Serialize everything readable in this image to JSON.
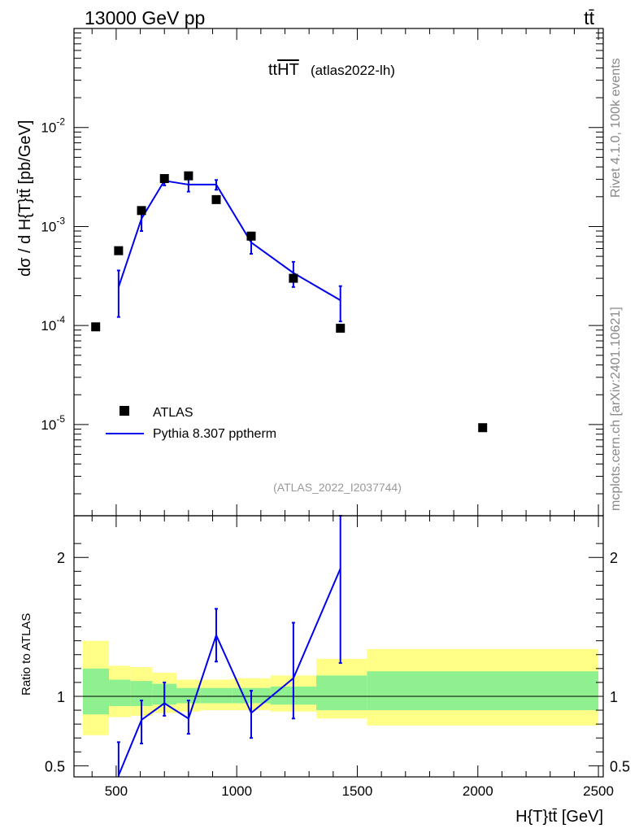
{
  "header": {
    "process_left": "13000 GeV pp",
    "process_right": "tt̄"
  },
  "side_labels": {
    "rivet": "Rivet 4.1.0,  100k events",
    "mcplots": "mcplots.cern.ch [arXiv:2401.10621]"
  },
  "chart_data": [
    {
      "type": "scatter",
      "panel": "main",
      "title_main": "tt",
      "title_overlined": "HT",
      "title_sub": "(atlas2022-lh)",
      "analysis_label": "(ATLAS_2022_I2037744)",
      "ylabel": "dσ / d H{T}tt̄ [pb/GeV]",
      "yscale": "log",
      "ylim": [
        1.2e-06,
        0.1
      ],
      "xlim": [
        325,
        2520
      ],
      "ytick_labels": [
        "10^-2",
        "10^-3",
        "10^-4",
        "10^-5"
      ],
      "legend": {
        "position": "bottom-left",
        "entries": [
          "ATLAS",
          "Pythia 8.307 pptherm"
        ]
      },
      "series": [
        {
          "name": "ATLAS",
          "style": "markers",
          "color": "#000000",
          "x": [
            415,
            510,
            605,
            700,
            800,
            915,
            1060,
            1235,
            1430,
            2020
          ],
          "y": [
            9.7e-05,
            0.00057,
            0.00145,
            0.00305,
            0.00325,
            0.00187,
            0.0008,
            0.0003,
            9.4e-05,
            9.3e-06
          ]
        },
        {
          "name": "Pythia 8.307 pptherm",
          "style": "line",
          "color": "#0000ee",
          "x": [
            510,
            605,
            700,
            800,
            915,
            1060,
            1235,
            1430
          ],
          "y": [
            0.000245,
            0.0012,
            0.0029,
            0.00265,
            0.00265,
            0.00069,
            0.00034,
            0.00018
          ],
          "err_lo": [
            0.000122,
            0.0009,
            0.0026,
            0.00225,
            0.00235,
            0.00053,
            0.000245,
            0.00011
          ],
          "err_hi": [
            0.00036,
            0.00135,
            0.00315,
            0.00305,
            0.00295,
            0.00087,
            0.00044,
            0.00025
          ]
        }
      ]
    },
    {
      "type": "line",
      "panel": "ratio",
      "ylabel": "Ratio to ATLAS",
      "xlabel": "H{T}tt̄ [GeV]",
      "ylim": [
        0.42,
        2.3
      ],
      "xlim": [
        325,
        2520
      ],
      "xticks": [
        500,
        1000,
        1500,
        2000,
        2500
      ],
      "xtick_labels": [
        "500",
        "1000",
        "1500",
        "2000",
        "2500"
      ],
      "yticks": [
        0.5,
        1,
        2
      ],
      "ytick_labels": [
        "0.5",
        "1",
        "2"
      ],
      "bands": [
        {
          "x0": 362,
          "x1": 470,
          "y_lo": 0.72,
          "y_hi": 1.4,
          "inner_lo": 0.87,
          "inner_hi": 1.2
        },
        {
          "x0": 470,
          "x1": 560,
          "y_lo": 0.85,
          "y_hi": 1.22,
          "inner_lo": 0.93,
          "inner_hi": 1.12
        },
        {
          "x0": 560,
          "x1": 650,
          "y_lo": 0.86,
          "y_hi": 1.21,
          "inner_lo": 0.93,
          "inner_hi": 1.11
        },
        {
          "x0": 650,
          "x1": 750,
          "y_lo": 0.88,
          "y_hi": 1.17,
          "inner_lo": 0.94,
          "inner_hi": 1.09
        },
        {
          "x0": 750,
          "x1": 850,
          "y_lo": 0.89,
          "y_hi": 1.12,
          "inner_lo": 0.95,
          "inner_hi": 1.06
        },
        {
          "x0": 850,
          "x1": 980,
          "y_lo": 0.9,
          "y_hi": 1.12,
          "inner_lo": 0.95,
          "inner_hi": 1.06
        },
        {
          "x0": 980,
          "x1": 1140,
          "y_lo": 0.9,
          "y_hi": 1.13,
          "inner_lo": 0.95,
          "inner_hi": 1.06
        },
        {
          "x0": 1140,
          "x1": 1330,
          "y_lo": 0.89,
          "y_hi": 1.15,
          "inner_lo": 0.94,
          "inner_hi": 1.07
        },
        {
          "x0": 1330,
          "x1": 1540,
          "y_lo": 0.84,
          "y_hi": 1.27,
          "inner_lo": 0.9,
          "inner_hi": 1.15
        },
        {
          "x0": 1540,
          "x1": 2500,
          "y_lo": 0.79,
          "y_hi": 1.34,
          "inner_lo": 0.9,
          "inner_hi": 1.18
        }
      ],
      "series": [
        {
          "name": "Pythia 8.307 pptherm / ATLAS",
          "color": "#0000ee",
          "x": [
            510,
            605,
            700,
            800,
            915,
            1060,
            1235,
            1430
          ],
          "y": [
            0.43,
            0.83,
            0.95,
            0.84,
            1.44,
            0.88,
            1.13,
            1.92
          ],
          "err_lo": [
            0.21,
            0.66,
            0.86,
            0.73,
            1.25,
            0.7,
            0.84,
            1.24
          ],
          "err_hi": [
            0.67,
            0.97,
            1.1,
            0.97,
            1.63,
            1.04,
            1.53,
            2.3
          ]
        }
      ]
    }
  ]
}
